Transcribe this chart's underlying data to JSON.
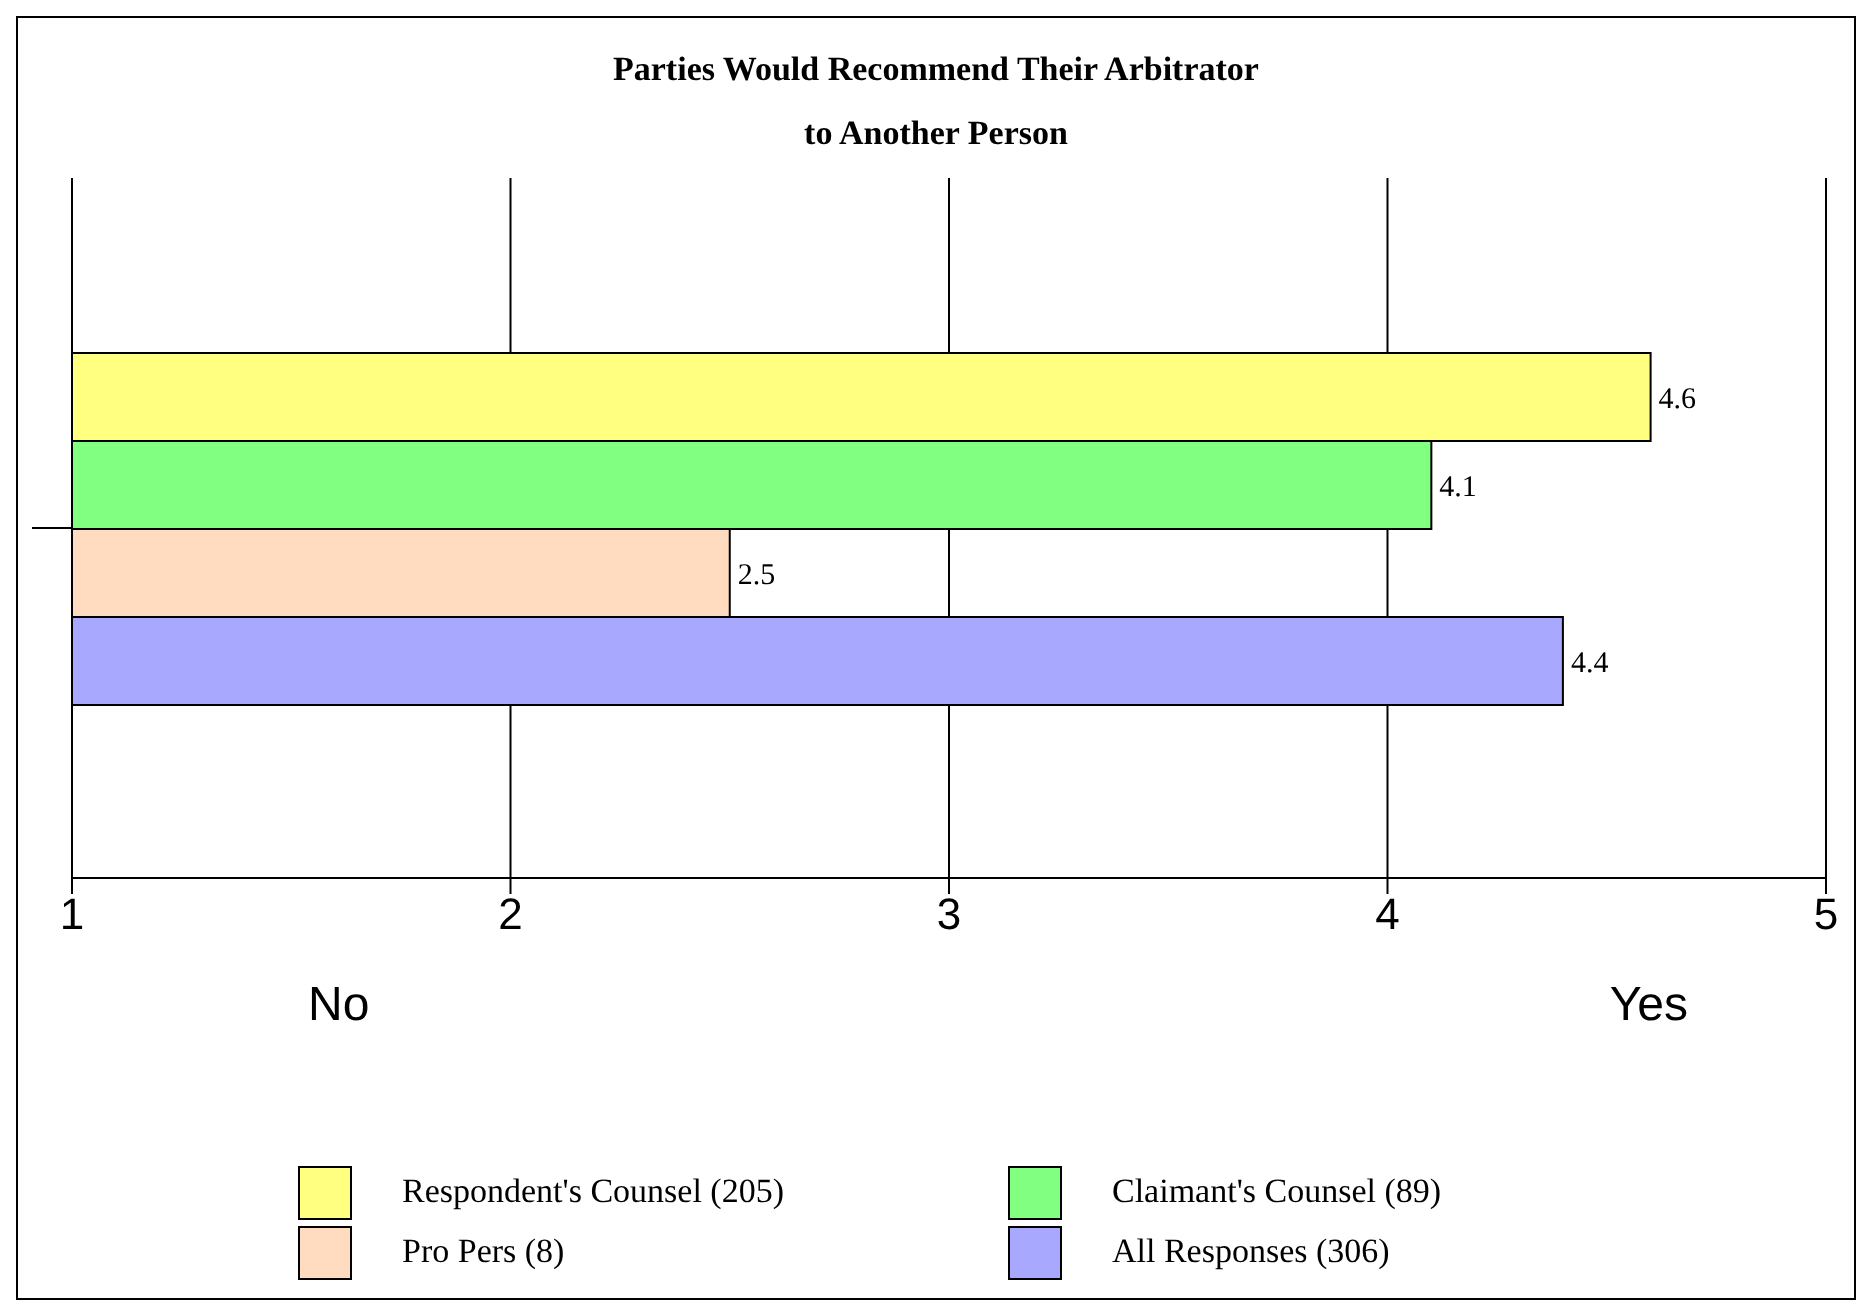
{
  "chart_data": {
    "type": "bar",
    "orientation": "horizontal",
    "title": "Parties Would Recommend Their Arbitrator to Another Person",
    "categories": [
      null
    ],
    "series": [
      {
        "name": "Respondent's Counsel (205)",
        "color": "#ffff80",
        "values": [
          4.6
        ]
      },
      {
        "name": "Claimant's Counsel (89)",
        "color": "#80ff80",
        "values": [
          4.1
        ]
      },
      {
        "name": "Pro Pers (8)",
        "color": "#ffdcc0",
        "values": [
          2.5
        ]
      },
      {
        "name": "All Responses (306)",
        "color": "#a8a8ff",
        "values": [
          4.4
        ]
      }
    ],
    "xlim": [
      1,
      5
    ],
    "xticks": [
      1,
      2,
      3,
      4,
      5
    ],
    "grid": "x",
    "data_labels": true,
    "legend": "bottom",
    "annotations": [
      "No",
      "Yes"
    ]
  }
}
